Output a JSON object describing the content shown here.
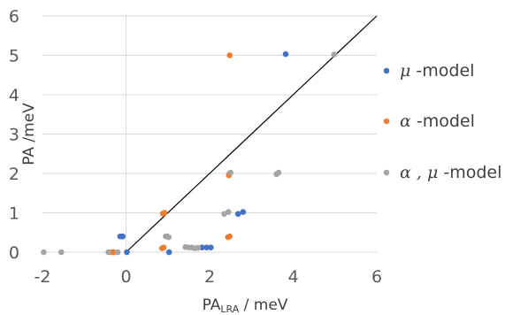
{
  "chart_data": {
    "type": "scatter",
    "xlabel_main": "PA",
    "xlabel_sub": "LRA",
    "xlabel_unit": " / meV",
    "ylabel": "PA  /meV",
    "xlim": [
      -2,
      6
    ],
    "ylim": [
      0,
      6
    ],
    "x_ticks": [
      "-2",
      "0",
      "2",
      "4",
      "6"
    ],
    "y_ticks": [
      "0",
      "1",
      "2",
      "3",
      "4",
      "5",
      "6"
    ],
    "grid": "horizontal",
    "legend_position": "right",
    "reference_line": {
      "x": [
        0,
        6
      ],
      "y": [
        0,
        6
      ]
    },
    "series": [
      {
        "name_symbol": "μ",
        "name_text": "-model",
        "color": "#4472C4",
        "points": [
          {
            "x": 3.82,
            "y": 5.03
          },
          {
            "x": 2.8,
            "y": 1.02
          },
          {
            "x": 2.68,
            "y": 0.97
          },
          {
            "x": 2.48,
            "y": 2.0
          },
          {
            "x": 2.03,
            "y": 0.12
          },
          {
            "x": 1.93,
            "y": 0.12
          },
          {
            "x": 1.82,
            "y": 0.12
          },
          {
            "x": 0.98,
            "y": 0.4
          },
          {
            "x": 1.03,
            "y": 0.0
          },
          {
            "x": -0.08,
            "y": 0.4
          },
          {
            "x": -0.14,
            "y": 0.4
          },
          {
            "x": 0.02,
            "y": 0.0
          },
          {
            "x": -0.3,
            "y": 0.0
          }
        ]
      },
      {
        "name_symbol": "α",
        "name_text": "-model",
        "color": "#ED7D31",
        "points": [
          {
            "x": 2.48,
            "y": 5.0
          },
          {
            "x": 2.48,
            "y": 2.0
          },
          {
            "x": 2.46,
            "y": 1.95
          },
          {
            "x": 2.48,
            "y": 0.4
          },
          {
            "x": 2.44,
            "y": 0.38
          },
          {
            "x": 0.92,
            "y": 1.0
          },
          {
            "x": 0.88,
            "y": 0.98
          },
          {
            "x": 0.9,
            "y": 0.12
          },
          {
            "x": 0.86,
            "y": 0.1
          },
          {
            "x": -0.3,
            "y": 0.0
          },
          {
            "x": -0.34,
            "y": 0.0
          }
        ]
      },
      {
        "name_symbol": "α , μ",
        "name_text": "-model",
        "color": "#A5A5A5",
        "points": [
          {
            "x": 4.98,
            "y": 5.02
          },
          {
            "x": 3.65,
            "y": 2.02
          },
          {
            "x": 3.6,
            "y": 1.98
          },
          {
            "x": 2.5,
            "y": 2.02
          },
          {
            "x": 2.45,
            "y": 1.02
          },
          {
            "x": 2.35,
            "y": 0.97
          },
          {
            "x": 1.42,
            "y": 0.13
          },
          {
            "x": 1.5,
            "y": 0.12
          },
          {
            "x": 1.58,
            "y": 0.12
          },
          {
            "x": 1.65,
            "y": 0.1
          },
          {
            "x": 1.72,
            "y": 0.11
          },
          {
            "x": 0.95,
            "y": 0.4
          },
          {
            "x": 1.02,
            "y": 0.38
          },
          {
            "x": -1.97,
            "y": 0.0
          },
          {
            "x": -1.55,
            "y": 0.0
          },
          {
            "x": -0.42,
            "y": 0.0
          },
          {
            "x": -0.2,
            "y": 0.0
          }
        ]
      }
    ]
  }
}
